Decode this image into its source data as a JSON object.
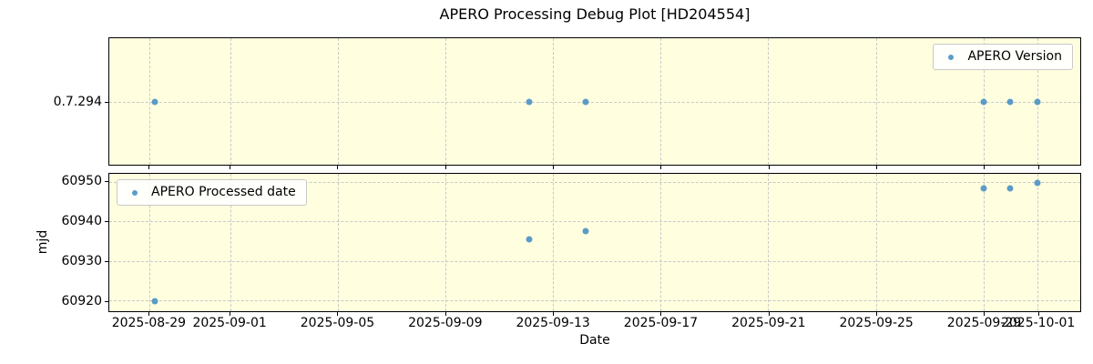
{
  "title": "APERO Processing Debug Plot [HD204554]",
  "x_axis": {
    "label": "Date",
    "tick_labels": [
      "2025-08-29",
      "2025-09-01",
      "2025-09-05",
      "2025-09-09",
      "2025-09-13",
      "2025-09-17",
      "2025-09-21",
      "2025-09-25",
      "2025-09-29",
      "2025-10-01"
    ],
    "tick_day_offsets": [
      0,
      3,
      7,
      11,
      15,
      19,
      23,
      27,
      31,
      33
    ],
    "xlim_day_offsets": [
      -1.5,
      34.6
    ]
  },
  "colors": {
    "marker": "#5b9bc8",
    "plot_background": "#ffffe0",
    "grid": "#c8c8c8",
    "axis_border": "#000000",
    "legend_border": "#c9c9c9"
  },
  "chart_data": [
    {
      "type": "scatter",
      "legend": "APERO Version",
      "legend_position": "upper right",
      "ylabel": "",
      "ytick_labels": [
        "0.7.294"
      ],
      "categorical_y": true,
      "grid": true,
      "x_dates": [
        "2025-08-29",
        "2025-09-12",
        "2025-09-14",
        "2025-09-29",
        "2025-09-30",
        "2025-10-01"
      ],
      "x_day_offsets": [
        0.2,
        14.1,
        16.2,
        31,
        32,
        33
      ],
      "y_values": [
        "0.7.294",
        "0.7.294",
        "0.7.294",
        "0.7.294",
        "0.7.294",
        "0.7.294"
      ]
    },
    {
      "type": "scatter",
      "legend": "APERO Processed date",
      "legend_position": "upper left",
      "ylabel": "mjd",
      "yticks": [
        60920,
        60930,
        60940,
        60950
      ],
      "ylim": [
        60917.2,
        60952.1
      ],
      "categorical_y": false,
      "grid": true,
      "x_dates": [
        "2025-08-29",
        "2025-09-12",
        "2025-09-14",
        "2025-09-29",
        "2025-09-30",
        "2025-10-01"
      ],
      "x_day_offsets": [
        0.2,
        14.1,
        16.2,
        31,
        32,
        33
      ],
      "y_values": [
        60919.7,
        60935.4,
        60937.5,
        60948.5,
        60948.4,
        60949.7
      ]
    }
  ]
}
